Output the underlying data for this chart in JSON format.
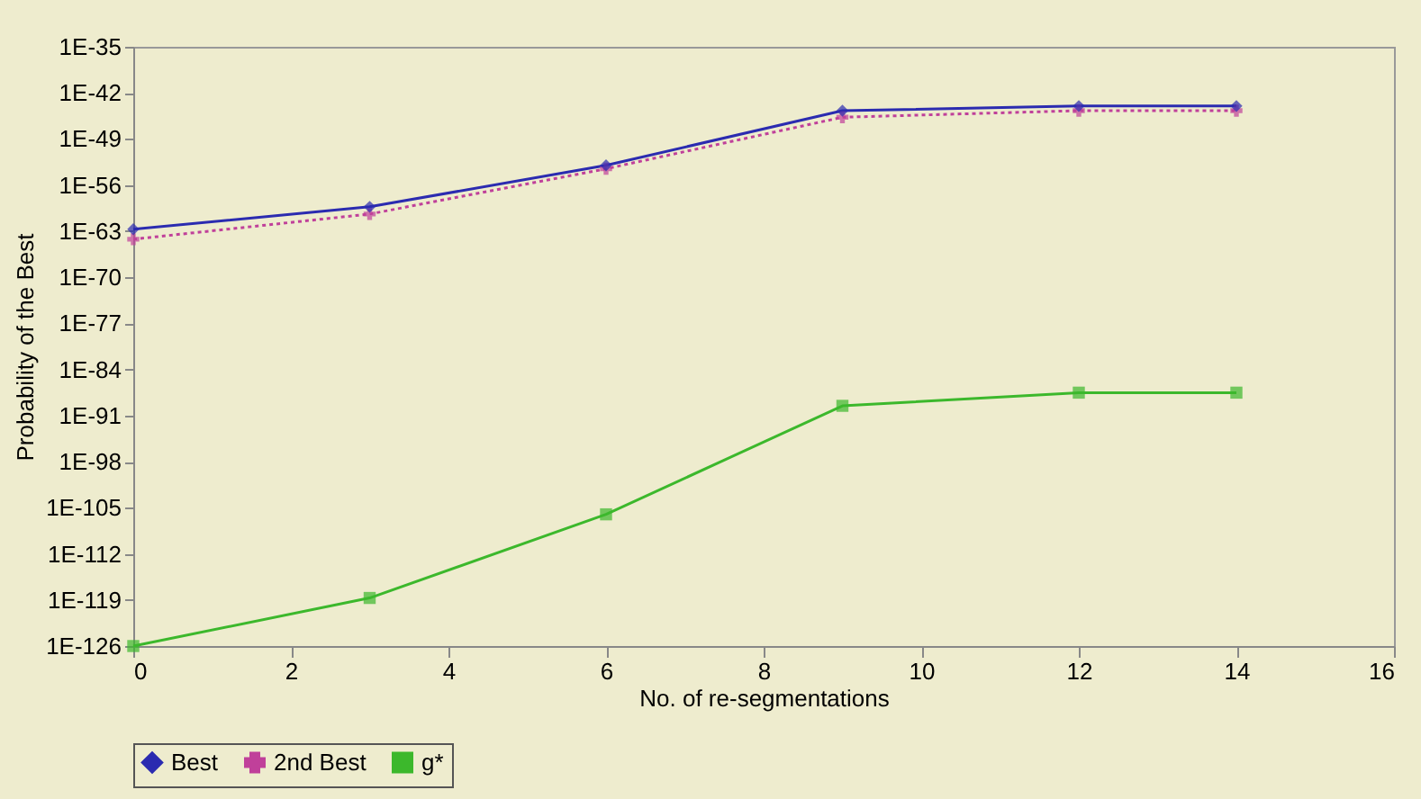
{
  "chart_data": {
    "type": "line",
    "xlabel": "No. of re-segmentations",
    "ylabel": "Probability of the Best",
    "x": [
      0,
      3,
      6,
      9,
      12,
      14
    ],
    "series": [
      {
        "name": "Best",
        "color": "#2b2bb0",
        "marker": "diamond",
        "line_style": "solid",
        "values": [
          2e-63,
          5e-60,
          1e-53,
          2e-45,
          1e-44,
          1e-44
        ]
      },
      {
        "name": "2nd Best",
        "color": "#c0409a",
        "marker": "cross",
        "line_style": "dotted",
        "values": [
          6e-65,
          4e-61,
          3e-54,
          2e-46,
          2e-45,
          2e-45
        ]
      },
      {
        "name": "g*",
        "color": "#3cb82c",
        "marker": "square",
        "line_style": "solid",
        "values": [
          1e-126,
          2e-119,
          1e-106,
          3e-90,
          3e-88,
          3e-88
        ]
      }
    ],
    "log": "y",
    "xlim": [
      0,
      16
    ],
    "xticks": [
      0,
      2,
      4,
      6,
      8,
      10,
      12,
      14,
      16
    ],
    "ylim": [
      1e-126,
      1e-35
    ],
    "yticks": [
      {
        "value": 1e-126,
        "label": "1E-126"
      },
      {
        "value": 1e-119,
        "label": "1E-119"
      },
      {
        "value": 1e-112,
        "label": "1E-112"
      },
      {
        "value": 1e-105,
        "label": "1E-105"
      },
      {
        "value": 1e-98,
        "label": "1E-98"
      },
      {
        "value": 1e-91,
        "label": "1E-91"
      },
      {
        "value": 1e-84,
        "label": "1E-84"
      },
      {
        "value": 1e-77,
        "label": "1E-77"
      },
      {
        "value": 1e-70,
        "label": "1E-70"
      },
      {
        "value": 1e-63,
        "label": "1E-63"
      },
      {
        "value": 1e-56,
        "label": "1E-56"
      },
      {
        "value": 1e-49,
        "label": "1E-49"
      },
      {
        "value": 1e-42,
        "label": "1E-42"
      },
      {
        "value": 1e-35,
        "label": "1E-35"
      }
    ],
    "grid": false,
    "legend": "bottom"
  }
}
